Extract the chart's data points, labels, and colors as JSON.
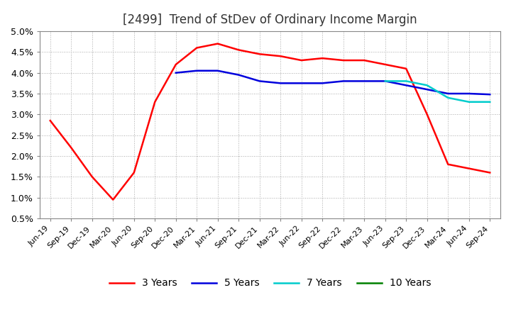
{
  "title": "[2499]  Trend of StDev of Ordinary Income Margin",
  "title_fontsize": 12,
  "background_color": "#ffffff",
  "plot_bg_color": "#ffffff",
  "ylim": [
    0.005,
    0.05
  ],
  "yticks": [
    0.005,
    0.01,
    0.015,
    0.02,
    0.025,
    0.03,
    0.035,
    0.04,
    0.045,
    0.05
  ],
  "ytick_labels": [
    "0.5%",
    "1.0%",
    "1.5%",
    "2.0%",
    "2.5%",
    "3.0%",
    "3.5%",
    "4.0%",
    "4.5%",
    "5.0%"
  ],
  "x_labels": [
    "Jun-19",
    "Sep-19",
    "Dec-19",
    "Mar-20",
    "Jun-20",
    "Sep-20",
    "Dec-20",
    "Mar-21",
    "Jun-21",
    "Sep-21",
    "Dec-21",
    "Mar-22",
    "Jun-22",
    "Sep-22",
    "Dec-22",
    "Mar-23",
    "Jun-23",
    "Sep-23",
    "Dec-23",
    "Mar-24",
    "Jun-24",
    "Sep-24"
  ],
  "series": {
    "3 Years": {
      "color": "#ff0000",
      "values": [
        0.0285,
        0.022,
        0.015,
        0.0095,
        0.016,
        0.033,
        0.042,
        0.046,
        0.047,
        0.0455,
        0.0445,
        0.044,
        0.043,
        0.0435,
        0.043,
        0.043,
        0.042,
        0.041,
        0.03,
        0.018,
        0.017,
        0.016
      ]
    },
    "5 Years": {
      "color": "#0000dd",
      "values": [
        null,
        null,
        null,
        null,
        null,
        null,
        0.04,
        0.0405,
        0.0405,
        0.0395,
        0.038,
        0.0375,
        0.0375,
        0.0375,
        0.038,
        0.038,
        0.038,
        0.037,
        0.036,
        0.035,
        0.035,
        0.0348
      ]
    },
    "7 Years": {
      "color": "#00cccc",
      "values": [
        null,
        null,
        null,
        null,
        null,
        null,
        null,
        null,
        null,
        null,
        null,
        null,
        null,
        null,
        null,
        null,
        0.038,
        0.038,
        0.037,
        0.034,
        0.033,
        0.033
      ]
    },
    "10 Years": {
      "color": "#008000",
      "values": [
        null,
        null,
        null,
        null,
        null,
        null,
        null,
        null,
        null,
        null,
        null,
        null,
        null,
        null,
        null,
        null,
        null,
        null,
        null,
        null,
        null,
        null
      ]
    }
  },
  "grid_color": "#aaaaaa",
  "grid_style": ":",
  "line_width": 1.8
}
